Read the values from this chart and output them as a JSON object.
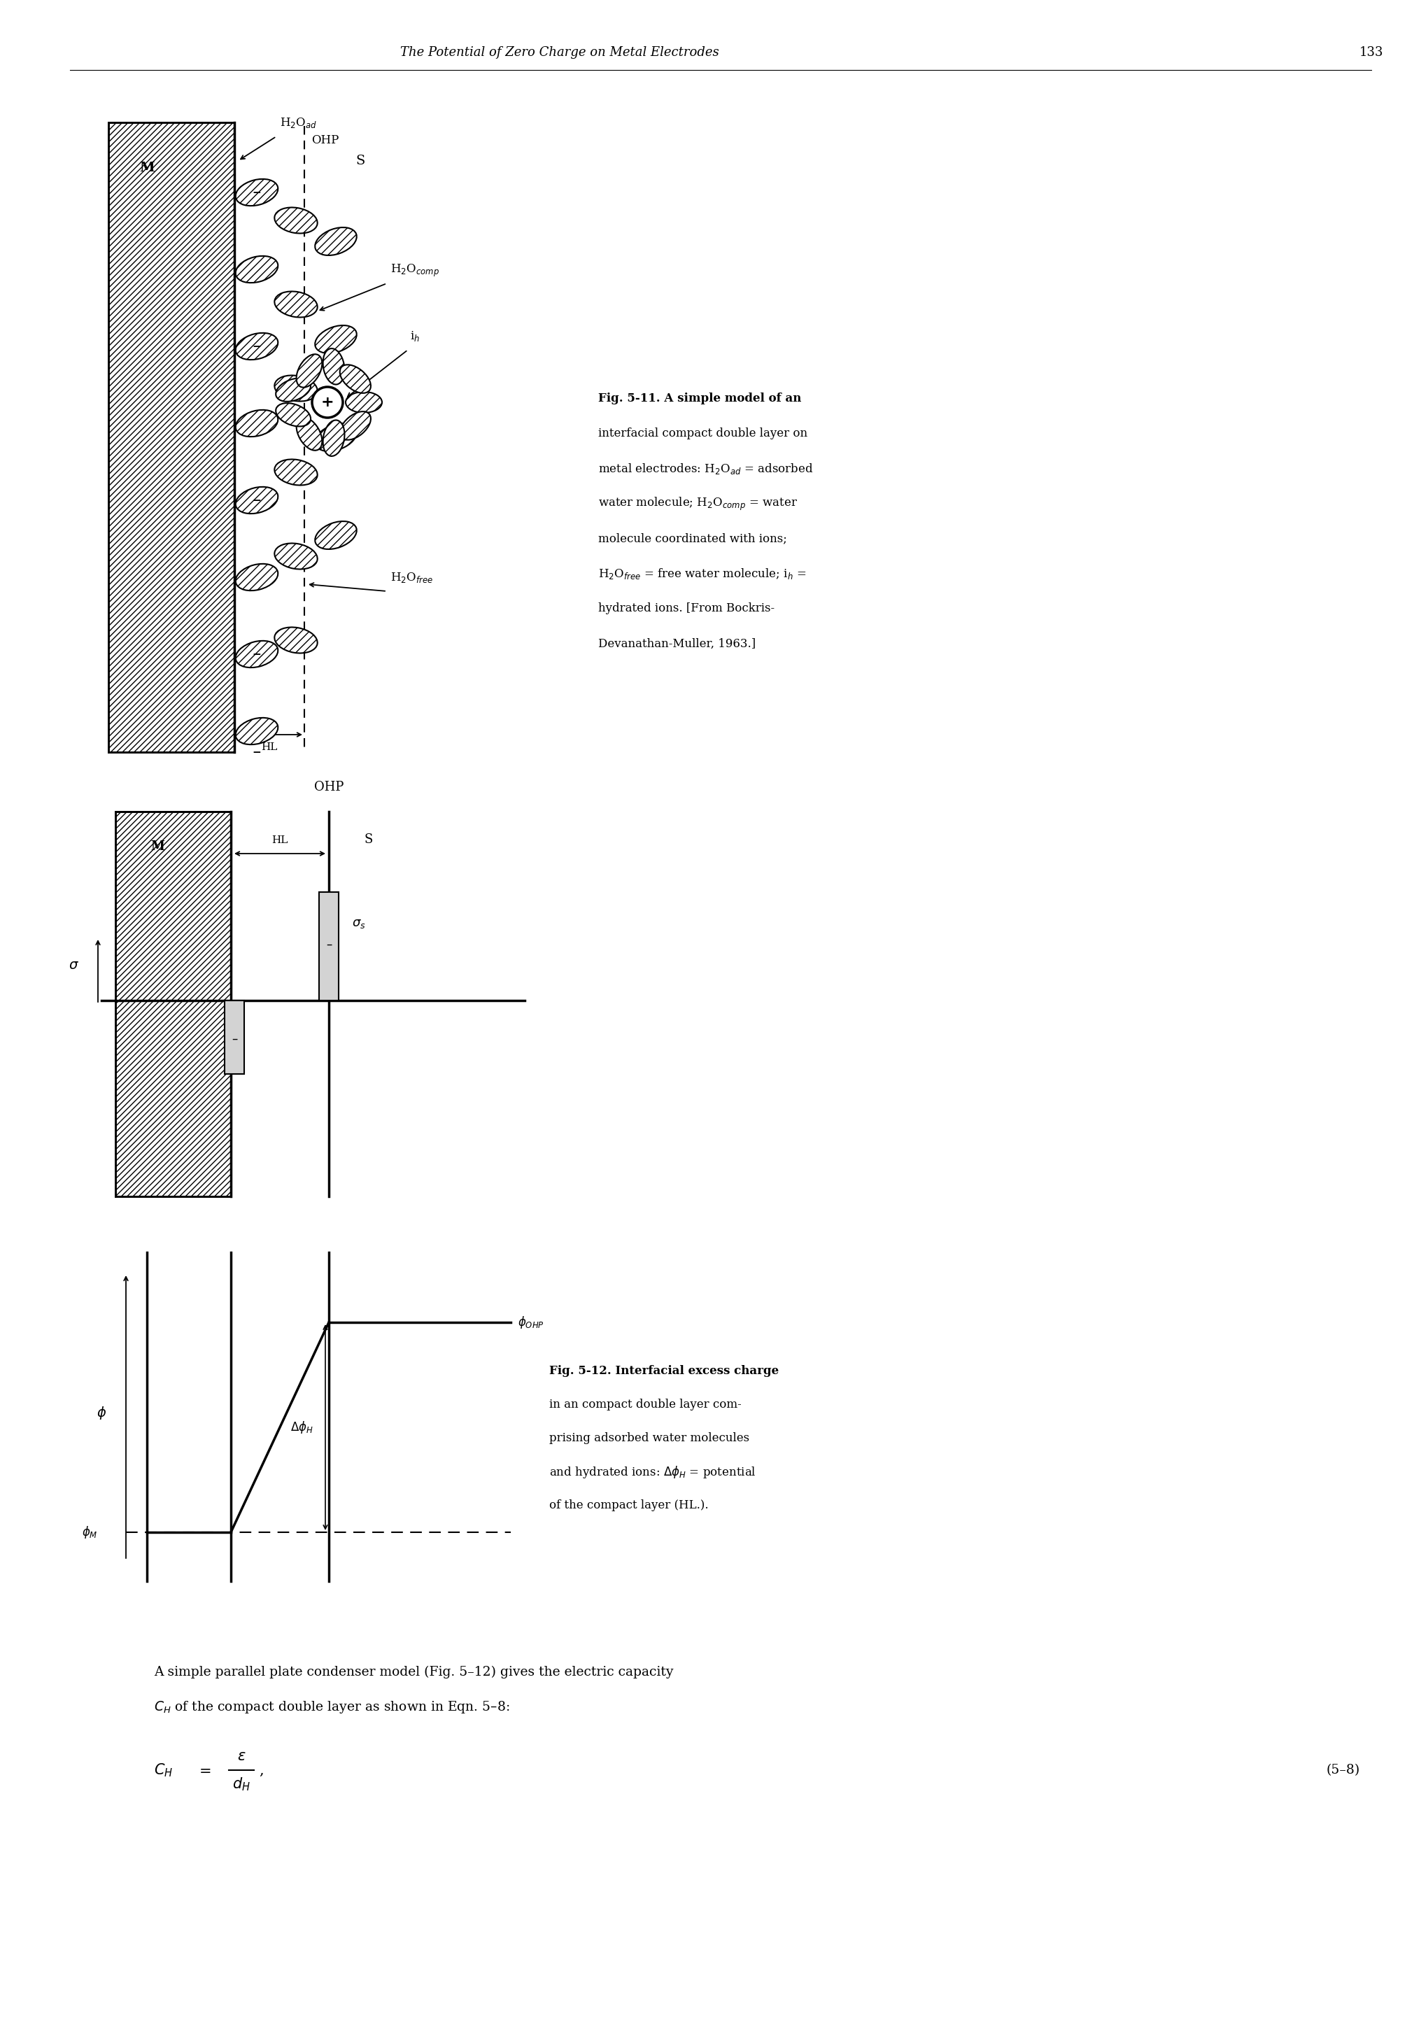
{
  "page_title": "The Potential of Zero Charge on Metal Electrodes",
  "page_number": "133",
  "background_color": "#ffffff",
  "fig11_cap_lines": [
    "Fig. 5-11. A simple model of an",
    "interfacial compact double layer on",
    "metal electrodes: H$_2$O$_{ad}$ = adsorbed",
    "water molecule; H$_2$O$_{comp}$ = water",
    "molecule coordinated with ions;",
    "H$_2$O$_{free}$ = free water molecule; i$_h$ =",
    "hydrated ions. [From Bockris-",
    "Devanathan-Muller, 1963.]"
  ],
  "fig12_cap_lines": [
    "Fig. 5-12. Interfacial excess charge",
    "in an compact double layer com-",
    "prising adsorbed water molecules",
    "and hydrated ions: $\\Delta\\phi_H$ = potential",
    "of the compact layer (HL.)."
  ],
  "bottom_line1": "A simple parallel plate condenser model (Fig. 5–12) gives the electric capacity",
  "bottom_line2": "$C_H$ of the compact double layer as shown in Eqn. 5–8:",
  "eq_number": "(5–8)"
}
